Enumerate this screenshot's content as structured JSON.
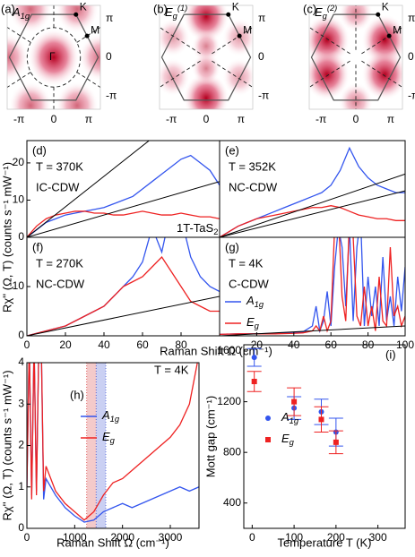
{
  "chart_data": [
    {
      "type": "heatmap",
      "label": "(a)",
      "title": {
        "main": "A",
        "sub": "1g"
      },
      "points": [
        "K",
        "M",
        "Γ"
      ],
      "xlim": [
        -4.2,
        4.2
      ],
      "ylim": [
        -4.2,
        4.2
      ],
      "xticks": [
        {
          "value": -3.1416,
          "label": "-π"
        },
        0,
        {
          "value": 3.1416,
          "label": "π"
        }
      ],
      "yticks": [
        {
          "value": -3.1416,
          "label": "-π"
        },
        0,
        {
          "value": 3.1416,
          "label": "π"
        }
      ],
      "color": "#c8002a"
    },
    {
      "type": "heatmap",
      "label": "(b)",
      "title": {
        "main": "E",
        "sub": "g",
        "sup": "(1)"
      },
      "points": [
        "K",
        "M"
      ],
      "xlim": [
        -4.2,
        4.2
      ],
      "ylim": [
        -4.2,
        4.2
      ],
      "xticks": [
        {
          "value": -3.1416,
          "label": "-π"
        },
        0,
        {
          "value": 3.1416,
          "label": "π"
        }
      ],
      "yticks": [
        {
          "value": -3.1416,
          "label": "-π"
        },
        0,
        {
          "value": 3.1416,
          "label": "π"
        }
      ],
      "color": "#c8002a"
    },
    {
      "type": "heatmap",
      "label": "(c)",
      "title": {
        "main": "E",
        "sub": "g",
        "sup": "(2)"
      },
      "points": [
        "K",
        "M"
      ],
      "xlim": [
        -4.2,
        4.2
      ],
      "ylim": [
        -4.2,
        4.2
      ],
      "xticks": [
        {
          "value": -3.1416,
          "label": "-π"
        },
        0,
        {
          "value": 3.1416,
          "label": "π"
        }
      ],
      "yticks": [
        {
          "value": -3.1416,
          "label": "-π"
        },
        0,
        {
          "value": 3.1416,
          "label": "π"
        }
      ],
      "color": "#c8002a"
    },
    {
      "type": "line",
      "label": "(d)",
      "ylabel": "Rχ'' (Ω, T) (counts s⁻¹ mW⁻¹)",
      "annotations": [
        {
          "text": "T = 370K",
          "color": "#8b1010"
        },
        {
          "text": "IC-CDW",
          "color": "#8b1010"
        }
      ],
      "material": {
        "main": "1T-TaS",
        "sub": "2"
      },
      "xlim": [
        0,
        100
      ],
      "ylim": [
        0,
        26
      ],
      "yticks": [
        0,
        10,
        20
      ],
      "x": [
        0,
        5,
        10,
        15,
        20,
        25,
        30,
        35,
        40,
        45,
        50,
        55,
        60,
        65,
        70,
        75,
        80,
        85,
        90,
        95,
        100
      ],
      "series": [
        {
          "color": "#3355ee",
          "values": [
            0,
            2,
            4,
            5,
            6,
            6.5,
            7,
            7.5,
            8,
            9,
            10,
            11,
            13,
            15,
            17,
            19,
            21,
            22,
            20,
            18,
            14
          ]
        },
        {
          "color": "#ee2222",
          "values": [
            0,
            3,
            5,
            6,
            6.5,
            7,
            7,
            6.5,
            6.5,
            6,
            6,
            6.5,
            7,
            6.5,
            6,
            6,
            6.5,
            6,
            5.5,
            5.5,
            5
          ]
        },
        {
          "color": "#000000",
          "x": [
            0,
            100
          ],
          "values": [
            0,
            41
          ]
        },
        {
          "color": "#000000",
          "x": [
            0,
            100
          ],
          "values": [
            0,
            15
          ]
        }
      ]
    },
    {
      "type": "line",
      "label": "(e)",
      "annotations": [
        {
          "text": "T = 352K",
          "color": "#e8d800"
        },
        {
          "text": "NC-CDW",
          "color": "#e8d800"
        }
      ],
      "xlim": [
        0,
        100
      ],
      "ylim": [
        0,
        26
      ],
      "x": [
        0,
        5,
        10,
        15,
        20,
        25,
        30,
        35,
        40,
        45,
        50,
        55,
        60,
        65,
        70,
        75,
        80,
        85,
        90,
        95,
        100
      ],
      "series": [
        {
          "color": "#3355ee",
          "values": [
            0,
            1.5,
            3,
            4,
            5,
            6,
            7,
            8,
            9,
            10,
            11,
            12,
            14,
            18,
            24,
            19,
            16,
            14,
            13,
            12,
            12
          ]
        },
        {
          "color": "#ee2222",
          "values": [
            0,
            1.5,
            3,
            4,
            5,
            5.5,
            6,
            6.5,
            7,
            7.5,
            8,
            8,
            8.5,
            8,
            7,
            6,
            5.5,
            5,
            5,
            4.5,
            4.5
          ]
        },
        {
          "color": "#000000",
          "x": [
            0,
            100
          ],
          "values": [
            0,
            17
          ]
        },
        {
          "color": "#000000",
          "x": [
            0,
            100
          ],
          "values": [
            0,
            12.5
          ]
        }
      ]
    },
    {
      "type": "line",
      "label": "(f)",
      "xlabel": "Raman Shift Ω (cm⁻¹)",
      "annotations": [
        {
          "text": "T = 270K",
          "color": "#44dd22"
        },
        {
          "text": "NC-CDW",
          "color": "#44dd22"
        }
      ],
      "xlim": [
        0,
        100
      ],
      "ylim": [
        0,
        20
      ],
      "yticks": [
        0,
        10
      ],
      "xticks": [
        0,
        20,
        40,
        60,
        80
      ],
      "x": [
        0,
        5,
        10,
        15,
        20,
        25,
        30,
        35,
        40,
        45,
        50,
        55,
        60,
        65,
        70,
        75,
        80,
        85,
        90,
        95,
        100
      ],
      "series": [
        {
          "color": "#3355ee",
          "values": [
            0,
            0.5,
            1,
            1.5,
            2,
            3,
            4,
            5,
            6,
            8,
            10,
            12,
            15,
            22,
            17,
            26,
            24,
            16,
            12,
            10,
            9
          ]
        },
        {
          "color": "#ee2222",
          "values": [
            0,
            0.5,
            1,
            1.5,
            2,
            3,
            4,
            5,
            6,
            8,
            10,
            11,
            12,
            14,
            16,
            13,
            10,
            7,
            6,
            5,
            5
          ]
        },
        {
          "color": "#000000",
          "x": [
            0,
            100
          ],
          "values": [
            0,
            8
          ]
        }
      ]
    },
    {
      "type": "line",
      "label": "(g)",
      "annotations": [
        {
          "text": "T = 4K",
          "color": "#1010c0"
        },
        {
          "text": "C-CDW",
          "color": "#1010c0"
        }
      ],
      "xlim": [
        0,
        100
      ],
      "ylim": [
        0,
        20
      ],
      "xticks": [
        20,
        40,
        60,
        80,
        100
      ],
      "x": [
        0,
        10,
        20,
        30,
        40,
        45,
        50,
        52,
        54,
        56,
        58,
        60,
        62,
        64,
        66,
        68,
        70,
        72,
        74,
        76,
        78,
        80,
        82,
        84,
        86,
        88,
        90,
        92,
        94,
        96,
        98,
        100
      ],
      "series": [
        {
          "name": {
            "main": "A",
            "sub": "1g"
          },
          "color": "#3355ee",
          "values": [
            0.3,
            0.4,
            0.4,
            0.5,
            0.6,
            0.8,
            2,
            6,
            1,
            3,
            9,
            2,
            14,
            22,
            18,
            6,
            22,
            3,
            18,
            24,
            2,
            12,
            4,
            10,
            2,
            16,
            3,
            8,
            2,
            12,
            5,
            14
          ]
        },
        {
          "name": {
            "main": "E",
            "sub": "g"
          },
          "color": "#ee2222",
          "values": [
            0.3,
            0.4,
            0.4,
            0.4,
            0.5,
            0.6,
            1,
            2,
            1,
            4,
            1,
            3,
            22,
            25,
            8,
            3,
            24,
            20,
            4,
            2,
            10,
            2,
            6,
            1,
            12,
            3,
            2,
            18,
            4,
            6,
            2,
            4
          ]
        },
        {
          "color": "#000000",
          "x": [
            0,
            100
          ],
          "values": [
            0,
            2
          ]
        }
      ]
    },
    {
      "type": "line",
      "label": "(h)",
      "ylabel": "Rχ'' (Ω, T) (counts s⁻¹ mW⁻¹)",
      "xlabel": "Raman Shift Ω (cm⁻¹)",
      "annotations": [
        {
          "text": "T = 4K",
          "color": "#000000"
        }
      ],
      "xlim": [
        0,
        3600
      ],
      "ylim": [
        0,
        4
      ],
      "yticks": [
        0,
        1,
        2,
        3,
        4
      ],
      "xticks": [
        0,
        1000,
        2000,
        3000
      ],
      "x": [
        0,
        50,
        100,
        150,
        200,
        250,
        300,
        350,
        400,
        600,
        800,
        1000,
        1200,
        1400,
        1600,
        1800,
        2000,
        2200,
        2400,
        2600,
        2800,
        3000,
        3200,
        3400,
        3600
      ],
      "shading": [
        {
          "color": "#e06666",
          "range": [
            1250,
            1450
          ]
        },
        {
          "color": "#6677dd",
          "range": [
            1450,
            1650
          ]
        }
      ],
      "series": [
        {
          "name": {
            "main": "A",
            "sub": "1g"
          },
          "color": "#3355ee",
          "values": [
            1,
            4.5,
            0.8,
            4.5,
            0.9,
            4.5,
            4.5,
            0.7,
            1.2,
            0.8,
            0.5,
            0.3,
            0.15,
            0.2,
            0.4,
            0.5,
            0.6,
            0.5,
            0.6,
            0.7,
            0.8,
            0.9,
            1.0,
            0.9,
            1.0
          ]
        },
        {
          "name": {
            "main": "E",
            "sub": "g"
          },
          "color": "#ee2222",
          "values": [
            1,
            4.5,
            0.7,
            4.5,
            0.8,
            4.5,
            4.5,
            0.9,
            1.5,
            0.9,
            0.6,
            0.4,
            0.2,
            0.4,
            0.8,
            1.1,
            1.2,
            1.4,
            1.6,
            1.8,
            2.0,
            2.2,
            2.5,
            3.0,
            4.2
          ]
        }
      ]
    },
    {
      "type": "scatter",
      "label": "(i)",
      "ylabel": "Mott gap (cm⁻¹)",
      "xlabel": "Temperature T (K)",
      "xlim": [
        -20,
        365
      ],
      "ylim": [
        200,
        1650
      ],
      "yticks": [
        400,
        800,
        1200,
        1600
      ],
      "xticks": [
        0,
        100,
        200,
        300
      ],
      "x": [
        5,
        100,
        165,
        200
      ],
      "series": [
        {
          "name": {
            "main": "A",
            "sub": "1g"
          },
          "marker": "circle",
          "color": "#3355ee",
          "values": [
            1550,
            1150,
            1120,
            960
          ],
          "errors": [
            70,
            90,
            100,
            110
          ]
        },
        {
          "name": {
            "main": "E",
            "sub": "g"
          },
          "marker": "square",
          "color": "#ee2222",
          "values": [
            1360,
            1200,
            1060,
            880
          ],
          "errors": [
            80,
            110,
            100,
            90
          ]
        }
      ]
    }
  ]
}
